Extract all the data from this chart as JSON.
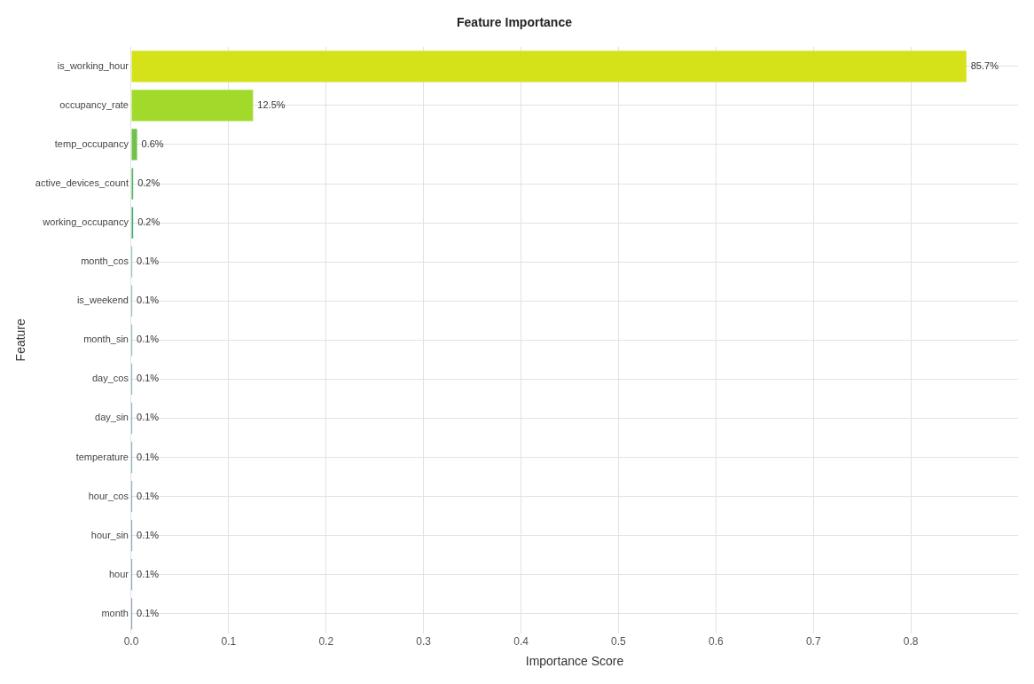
{
  "chart_data": {
    "type": "bar",
    "orientation": "horizontal",
    "title": "Feature Importance",
    "xlabel": "Importance Score",
    "ylabel": "Feature",
    "categories": [
      "is_working_hour",
      "occupancy_rate",
      "temp_occupancy",
      "active_devices_count",
      "working_occupancy",
      "month_cos",
      "is_weekend",
      "month_sin",
      "day_cos",
      "day_sin",
      "temperature",
      "hour_cos",
      "hour_sin",
      "hour",
      "month"
    ],
    "values": [
      0.857,
      0.125,
      0.006,
      0.002,
      0.002,
      0.001,
      0.001,
      0.001,
      0.001,
      0.001,
      0.001,
      0.001,
      0.001,
      0.001,
      0.001
    ],
    "colors": [
      "#d5e21a",
      "#a2da2c",
      "#72c24a",
      "#4fb464",
      "#43ab70",
      "#3aa27a",
      "#339a82",
      "#2d9288",
      "#298a8c",
      "#26828e",
      "#26798e",
      "#28718e",
      "#2b688d",
      "#2e608d",
      "#31578c"
    ],
    "value_labels": [
      "85.7%",
      "12.5%",
      "0.6%",
      "0.2%",
      "0.2%",
      "0.1%",
      "0.1%",
      "0.1%",
      "0.1%",
      "0.1%",
      "0.1%",
      "0.1%",
      "0.1%",
      "0.1%",
      "0.1%"
    ],
    "xlim": [
      0,
      0.91
    ],
    "xticks": [
      {
        "value": 0,
        "label": "0.0"
      },
      {
        "value": 0.1,
        "label": "0.1"
      },
      {
        "value": 0.2,
        "label": "0.2"
      },
      {
        "value": 0.3,
        "label": "0.3"
      },
      {
        "value": 0.4,
        "label": "0.4"
      },
      {
        "value": 0.5,
        "label": "0.5"
      },
      {
        "value": 0.6,
        "label": "0.6"
      },
      {
        "value": 0.7,
        "label": "0.7"
      },
      {
        "value": 0.8,
        "label": "0.8"
      }
    ],
    "grid": true,
    "legend": false
  }
}
